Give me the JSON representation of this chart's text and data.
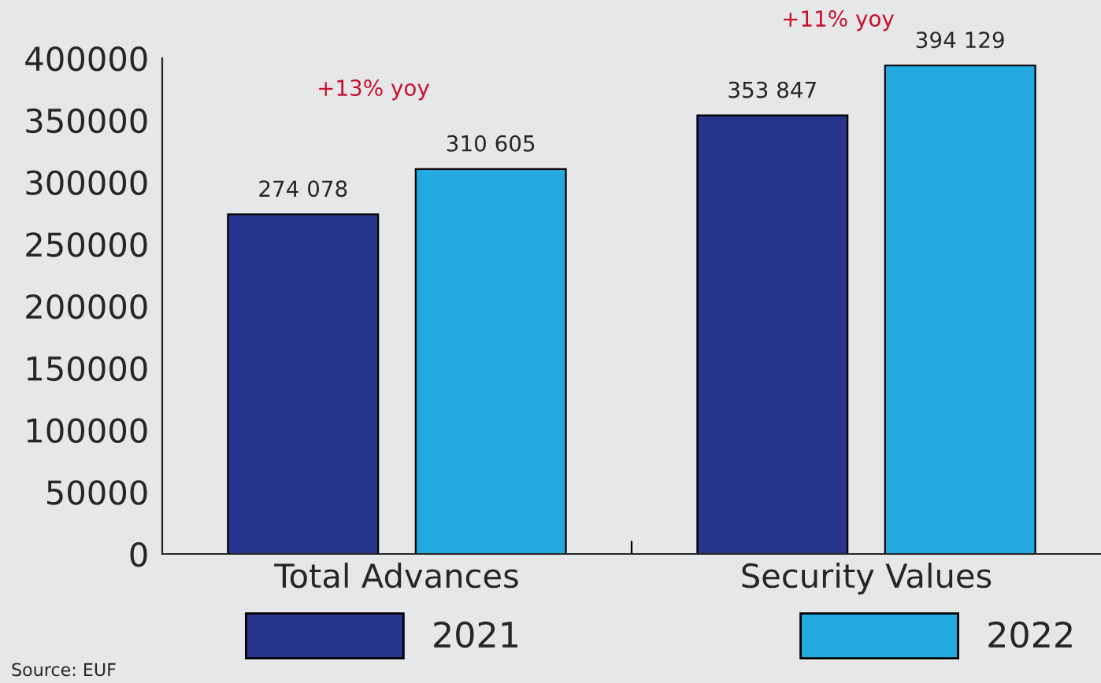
{
  "chart_data": {
    "type": "bar",
    "categories": [
      "Total Advances",
      "Security Values"
    ],
    "series": [
      {
        "name": "2021",
        "color": "#27348b",
        "values": [
          274078,
          353847
        ],
        "value_labels": [
          "274 078",
          "353 847"
        ]
      },
      {
        "name": "2022",
        "color": "#24a8e0",
        "values": [
          310605,
          394129
        ],
        "value_labels": [
          "310 605",
          "394 129"
        ]
      }
    ],
    "ylim": [
      0,
      400000
    ],
    "yticks": [
      0,
      50000,
      100000,
      150000,
      200000,
      250000,
      300000,
      350000,
      400000
    ],
    "grid": false,
    "legend": "bottom",
    "annotations": [
      "+13% yoy",
      "+11% yoy",
      "Source: EUF"
    ]
  }
}
